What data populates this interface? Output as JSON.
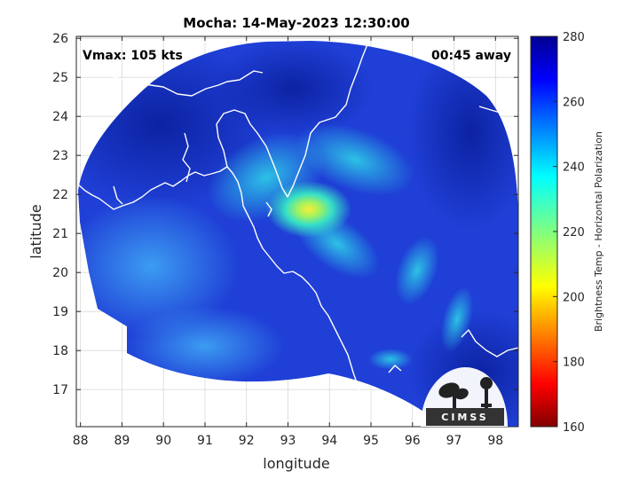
{
  "figure": {
    "title": "Mocha: 14-May-2023 12:30:00",
    "vmax_text": "Vmax: 105 kts",
    "time_away": "00:45 away",
    "xlabel": "longitude",
    "ylabel": "latitude",
    "x_ticks": [
      "88",
      "89",
      "90",
      "91",
      "92",
      "93",
      "94",
      "95",
      "96",
      "97",
      "98"
    ],
    "y_ticks": [
      "26",
      "25",
      "24",
      "23",
      "22",
      "21",
      "20",
      "19",
      "18",
      "17"
    ],
    "xlim": [
      87.9,
      98.55
    ],
    "ylim": [
      16.05,
      26.05
    ],
    "logo_text": "CIMSS"
  },
  "colorbar": {
    "label": "Brightness Temp - Horizontal Polarization",
    "ticks": [
      "280",
      "260",
      "240",
      "220",
      "200",
      "180",
      "160"
    ],
    "range": [
      160,
      280
    ],
    "colormap": "jet"
  },
  "storm": {
    "name": "Mocha",
    "center_lon": 93.4,
    "center_lat": 21.55,
    "eye_temp": 205
  }
}
